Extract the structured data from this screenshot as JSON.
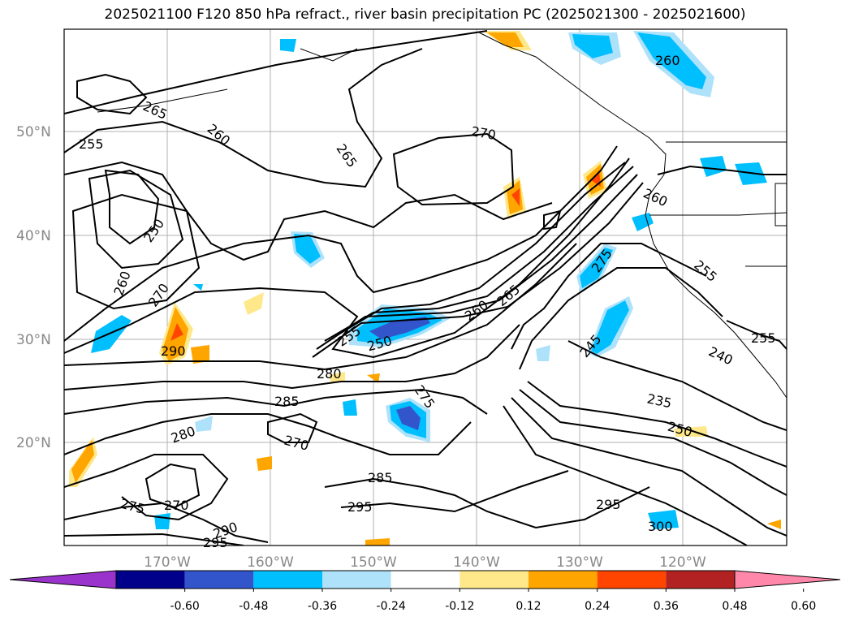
{
  "title": "2025021100 F120 850 hPa refract., river basin precipitation PC (2025021300 - 2025021600)",
  "lat_labels": [
    "50°N",
    "40°N",
    "30°N",
    "20°N"
  ],
  "lon_labels": [
    "170°W",
    "160°W",
    "150°W",
    "140°W",
    "130°W",
    "120°W"
  ],
  "contour_labels": [
    "265",
    "260",
    "255",
    "265",
    "270",
    "260",
    "250",
    "260",
    "270",
    "255",
    "250",
    "260",
    "265",
    "275",
    "260",
    "255",
    "290",
    "280",
    "285",
    "275",
    "245",
    "240",
    "255",
    "280",
    "270",
    "235",
    "250",
    "275",
    "270",
    "285",
    "295",
    "295",
    "300",
    "290",
    "295"
  ],
  "colorbar": {
    "colors": [
      "#9933cc",
      "#00008b",
      "#3355cc",
      "#00bfff",
      "#aee2fa",
      "#ffffff",
      "#ffe88a",
      "#ffa500",
      "#ff4500",
      "#b22222",
      "#ff88aa"
    ],
    "ticks": [
      "-0.60",
      "-0.48",
      "-0.36",
      "-0.24",
      "-0.12",
      "0.12",
      "0.24",
      "0.36",
      "0.48",
      "0.60"
    ]
  }
}
